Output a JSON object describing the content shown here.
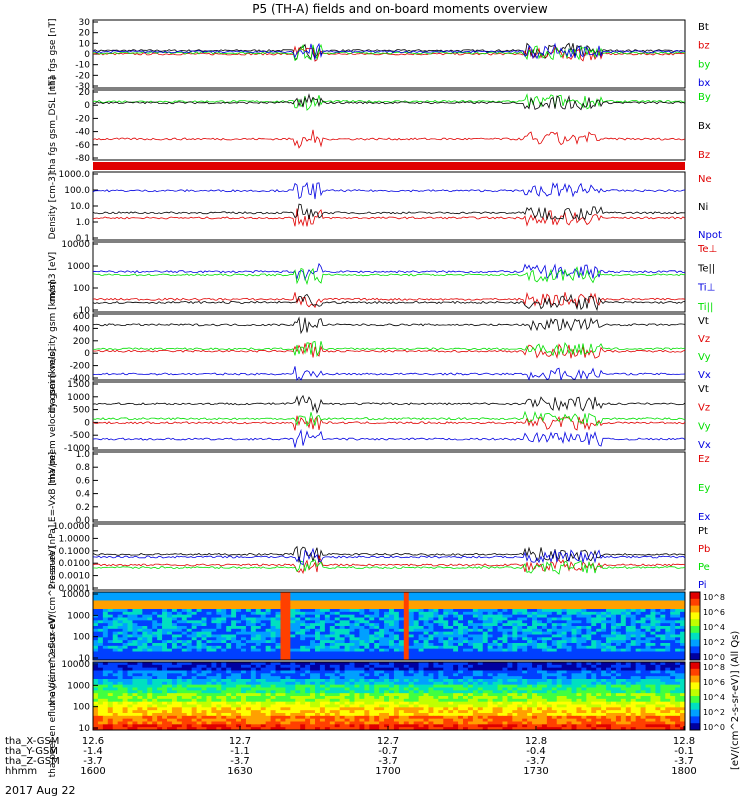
{
  "title": "P5 (TH-A) fields and on-board moments overview",
  "date": "2017 Aug 22",
  "cbar_unit": "[eV/(cm^2-s-sr-eV)] (All Qs)",
  "cbar_ticks": [
    "10^8",
    "10^6",
    "10^4",
    "10^2",
    "10^0"
  ],
  "colors": {
    "black": "#000000",
    "red": "#e00000",
    "green": "#00e000",
    "blue": "#0000e0"
  },
  "footer": {
    "rows": [
      {
        "label": "tha_X-GSM",
        "values": [
          "12.6",
          "12.7",
          "12.7",
          "12.8",
          "12.8"
        ]
      },
      {
        "label": "tha_Y-GSM",
        "values": [
          "-1.4",
          "-1.1",
          "-0.7",
          "-0.4",
          "-0.1"
        ]
      },
      {
        "label": "tha_Z-GSM",
        "values": [
          "-3.7",
          "-3.7",
          "-3.7",
          "-3.7",
          "-3.7"
        ]
      },
      {
        "label": "hhmm",
        "values": [
          "1600",
          "1630",
          "1700",
          "1730",
          "1800"
        ]
      }
    ]
  },
  "chart_data": [
    {
      "type": "line",
      "ylabel": "tha fgs gse [nT]",
      "yticks": [
        "30",
        "20",
        "10",
        "0",
        "-10",
        "-20",
        "-30"
      ],
      "ylim": [
        -30,
        30
      ],
      "legend": [
        "Bt",
        "bz",
        "by",
        "bx"
      ],
      "series": [
        {
          "name": "Bt",
          "base": 3
        },
        {
          "name": "bz",
          "base": 0
        },
        {
          "name": "by",
          "base": 1
        },
        {
          "name": "bx",
          "base": 2
        }
      ]
    },
    {
      "type": "line",
      "ylabel": "tha fgs gsm_DSL [nT]",
      "yticks": [
        "20",
        "0",
        "-20",
        "-40",
        "-60",
        "-80"
      ],
      "ylim": [
        -90,
        20
      ],
      "legend": [
        "By",
        "Bx",
        "Bz"
      ],
      "series": [
        {
          "name": "By",
          "base": 2
        },
        {
          "name": "Bx",
          "base": 0
        },
        {
          "name": "Bz",
          "base": -57
        }
      ]
    },
    {
      "type": "flag",
      "ylabel": "",
      "yticks": [],
      "legend": []
    },
    {
      "type": "line",
      "ylabel": "Density [cm-3]",
      "yticks": [
        "1000.0",
        "100.0",
        "10.0",
        "1.0",
        "0.1"
      ],
      "ylim": [
        -1,
        3
      ],
      "log": true,
      "legend": [
        "Ne",
        "Ni",
        "Npot"
      ],
      "series": [
        {
          "name": "Ne",
          "base": 0.3
        },
        {
          "name": "Ni",
          "base": 0.6
        },
        {
          "name": "Npot",
          "base": 1.9
        }
      ]
    },
    {
      "type": "line",
      "ylabel": "mom3 [eV]",
      "yticks": [
        "10000",
        "1000",
        "100",
        "10"
      ],
      "ylim": [
        0.7,
        4
      ],
      "log": true,
      "legend": [
        "Te⊥",
        "Te||",
        "Ti⊥",
        "Ti||"
      ],
      "series": [
        {
          "name": "Te⊥",
          "base": 1.3
        },
        {
          "name": "Te||",
          "base": 1.15
        },
        {
          "name": "Ti⊥",
          "base": 2.6
        },
        {
          "name": "Ti||",
          "base": 2.45
        }
      ]
    },
    {
      "type": "line",
      "ylabel": "tha peim velocity gsm [km/s]",
      "yticks": [
        "600",
        "400",
        "200",
        "0",
        "-200",
        "-400"
      ],
      "ylim": [
        -500,
        600
      ],
      "legend": [
        "Vt",
        "Vz",
        "Vy",
        "Vx"
      ],
      "series": [
        {
          "name": "Vt",
          "base": 420
        },
        {
          "name": "Vz",
          "base": -20
        },
        {
          "name": "Vy",
          "base": 20
        },
        {
          "name": "Vx",
          "base": -400
        }
      ]
    },
    {
      "type": "line",
      "ylabel": "tha peem velocity gsm [km/s]",
      "yticks": [
        "1500",
        "1000",
        "500",
        "0",
        "-500",
        "-1000"
      ],
      "ylim": [
        -1000,
        1500
      ],
      "legend": [
        "Vt",
        "Vz",
        "Vy",
        "Vx"
      ],
      "series": [
        {
          "name": "Vt",
          "base": 700
        },
        {
          "name": "Vz",
          "base": 0
        },
        {
          "name": "Vy",
          "base": 150
        },
        {
          "name": "Vx",
          "base": -600
        }
      ]
    },
    {
      "type": "line",
      "ylabel": "E=-VxB [mV/m]",
      "yticks": [
        "1.0",
        "0.8",
        "0.6",
        "0.4",
        "0.2",
        "0.0"
      ],
      "ylim": [
        0,
        1
      ],
      "legend": [
        "Ez",
        "Ey",
        "Ex"
      ],
      "series": []
    },
    {
      "type": "line",
      "ylabel": "Pressure [nPa]",
      "yticks": [
        "10.0000",
        "1.0000",
        "0.1000",
        "0.0100",
        "0.0010",
        "0.0001"
      ],
      "ylim": [
        -4,
        1
      ],
      "log": true,
      "legend": [
        "Pt",
        "Pb",
        "Pe",
        "Pi"
      ],
      "series": [
        {
          "name": "Pt",
          "base": -1.3
        },
        {
          "name": "Pb",
          "base": -2.1
        },
        {
          "name": "Pe",
          "base": -2.3
        },
        {
          "name": "Pi",
          "base": -1.5
        }
      ]
    },
    {
      "type": "spectrogram",
      "ylabel": "tha peir en eflux eV/(cm^2-s-sr-eV)",
      "yticks": [
        "10000",
        "1000",
        "100",
        "10"
      ]
    },
    {
      "type": "spectrogram",
      "ylabel": "tha peer en eflux eV/(cm^2-s-sr-eV)",
      "yticks": [
        "10000",
        "1000",
        "100",
        "10"
      ]
    }
  ]
}
